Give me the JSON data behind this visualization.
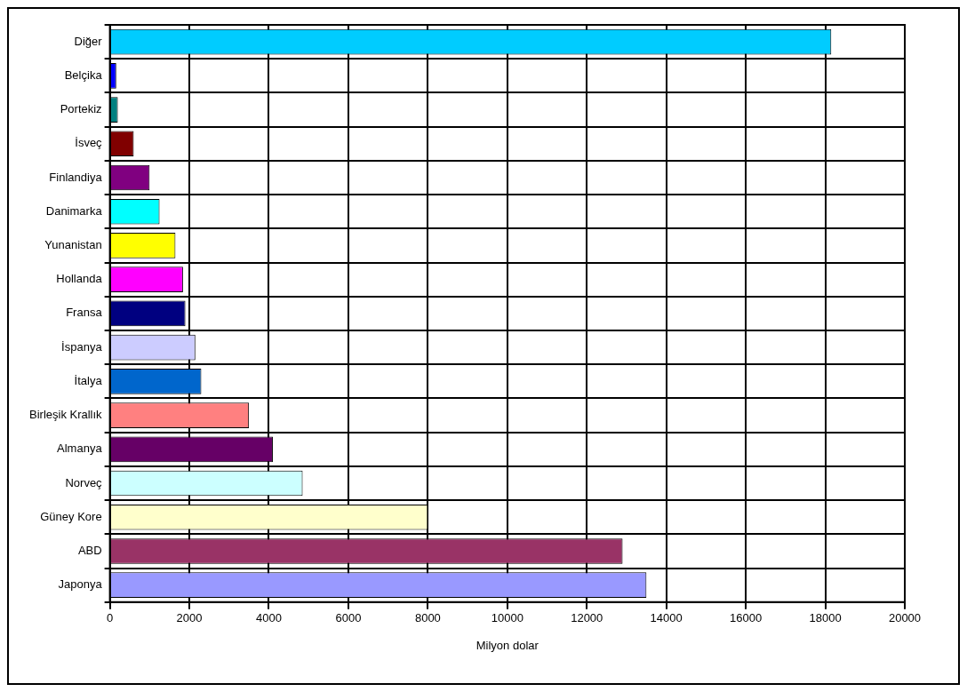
{
  "chart_data": {
    "type": "bar",
    "orientation": "horizontal",
    "xlabel": "Milyon dolar",
    "categories": [
      "Diğer",
      "Belçika",
      "Portekiz",
      "İsveç",
      "Finlandiya",
      "Danimarka",
      "Yunanistan",
      "Hollanda",
      "Fransa",
      "İspanya",
      "İtalya",
      "Birleşik Krallık",
      "Almanya",
      "Norveç",
      "Güney Kore",
      "ABD",
      "Japonya"
    ],
    "values": [
      18150,
      160,
      200,
      600,
      1000,
      1250,
      1650,
      1840,
      1900,
      2150,
      2300,
      3500,
      4100,
      4850,
      8000,
      12900,
      13500
    ],
    "colors": [
      "#00ccff",
      "#0000ff",
      "#008080",
      "#800000",
      "#800080",
      "#00ffff",
      "#ffff00",
      "#ff00ff",
      "#000080",
      "#ccccff",
      "#0066cc",
      "#ff8080",
      "#660066",
      "#ccffff",
      "#ffffcc",
      "#993366",
      "#9999ff"
    ],
    "xlim": [
      0,
      20000
    ],
    "xticks": [
      0,
      2000,
      4000,
      6000,
      8000,
      10000,
      12000,
      14000,
      16000,
      18000,
      20000
    ],
    "grid": true
  }
}
